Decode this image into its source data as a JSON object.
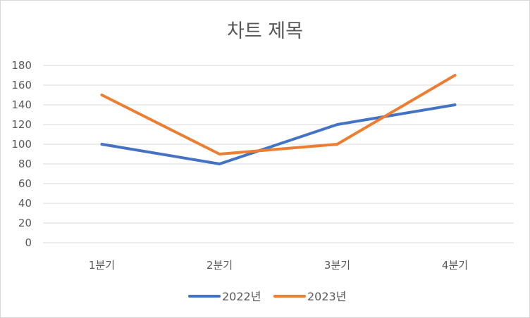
{
  "chart_data": {
    "type": "line",
    "title": "차트 제목",
    "categories": [
      "1분기",
      "2분기",
      "3분기",
      "4분기"
    ],
    "series": [
      {
        "name": "2022년",
        "values": [
          100,
          80,
          120,
          140
        ],
        "color": "#4472C4"
      },
      {
        "name": "2023년",
        "values": [
          150,
          90,
          100,
          170
        ],
        "color": "#ED7D31"
      }
    ],
    "ylim": [
      0,
      180
    ],
    "yticks": [
      0,
      20,
      40,
      60,
      80,
      100,
      120,
      140,
      160,
      180
    ],
    "grid": true,
    "legend": "bottom"
  }
}
